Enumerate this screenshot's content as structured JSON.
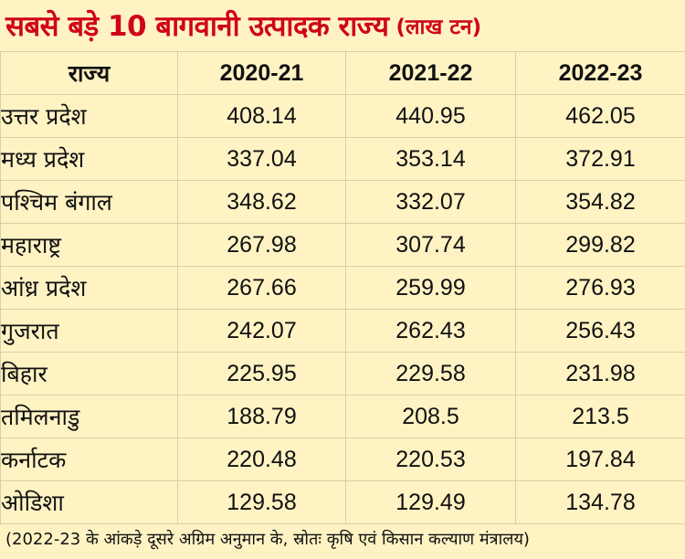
{
  "title": "सबसे बड़े 10 बागवानी उत्पादक राज्य",
  "unit": "(लाख टन)",
  "table": {
    "headers": [
      "राज्य",
      "2020-21",
      "2021-22",
      "2022-23"
    ],
    "rows": [
      [
        "उत्तर प्रदेश",
        "408.14",
        "440.95",
        "462.05"
      ],
      [
        "मध्य प्रदेश",
        "337.04",
        "353.14",
        "372.91"
      ],
      [
        "पश्चिम बंगाल",
        "348.62",
        "332.07",
        "354.82"
      ],
      [
        "महाराष्ट्र",
        "267.98",
        "307.74",
        "299.82"
      ],
      [
        "आंध्र प्रदेश",
        "267.66",
        "259.99",
        "276.93"
      ],
      [
        "गुजरात",
        "242.07",
        "262.43",
        "256.43"
      ],
      [
        "बिहार",
        "225.95",
        "229.58",
        "231.98"
      ],
      [
        "तमिलनाडु",
        "188.79",
        "208.5",
        "213.5"
      ],
      [
        "कर्नाटक",
        "220.48",
        "220.53",
        "197.84"
      ],
      [
        "ओडिशा",
        "129.58",
        "129.49",
        "134.78"
      ]
    ]
  },
  "footnote": "(2022-23 के आंकड़े दूसरे अग्रिम अनुमान के, स्रोतः कृषि एवं किसान कल्याण मंत्रालय)",
  "colors": {
    "background": "#fff3c4",
    "title": "#d0021b",
    "grid": "#d7cfa7"
  }
}
